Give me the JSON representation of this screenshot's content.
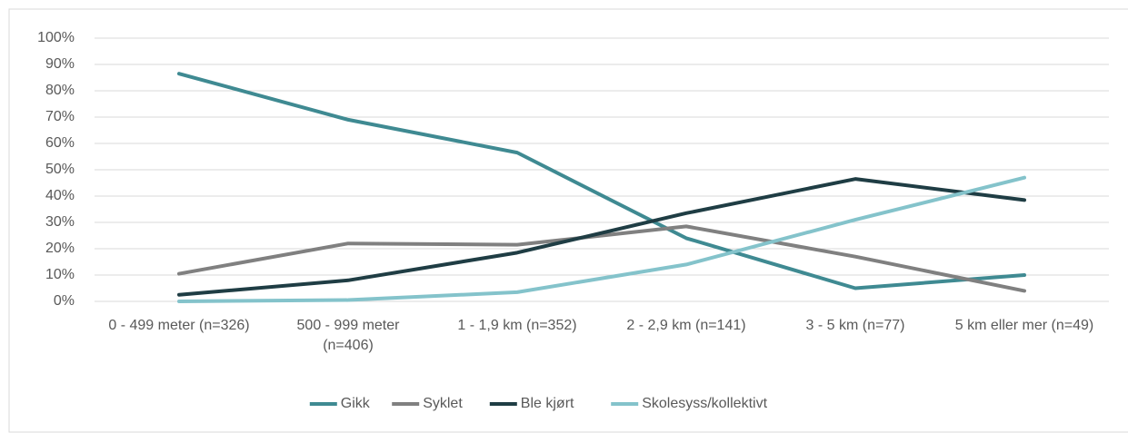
{
  "chart_data": {
    "type": "line",
    "categories": [
      "0 - 499 meter (n=326)",
      "500 - 999 meter (n=406)",
      "1 - 1,9 km (n=352)",
      "2 - 2,9 km (n=141)",
      "3 - 5 km (n=77)",
      "5 km eller mer (n=49)"
    ],
    "series": [
      {
        "name": "Gikk",
        "color": "#3f8a92",
        "values": [
          86.5,
          69,
          56.5,
          24,
          5,
          10
        ]
      },
      {
        "name": "Syklet",
        "color": "#808080",
        "values": [
          10.5,
          22,
          21.5,
          28.5,
          17,
          4
        ]
      },
      {
        "name": "Ble kjørt",
        "color": "#1f3d44",
        "values": [
          2.5,
          8,
          18.5,
          33.5,
          46.5,
          38.5
        ]
      },
      {
        "name": "Skolesyss/kollektivt",
        "color": "#84c3cb",
        "values": [
          0,
          0.5,
          3.5,
          14,
          31,
          47
        ]
      }
    ],
    "ylim": [
      0,
      100
    ],
    "yticks": [
      {
        "value": 0,
        "label": "0%"
      },
      {
        "value": 10,
        "label": "10%"
      },
      {
        "value": 20,
        "label": "20%"
      },
      {
        "value": 30,
        "label": "30%"
      },
      {
        "value": 40,
        "label": "40%"
      },
      {
        "value": 50,
        "label": "50%"
      },
      {
        "value": 60,
        "label": "60%"
      },
      {
        "value": 70,
        "label": "70%"
      },
      {
        "value": 80,
        "label": "80%"
      },
      {
        "value": 90,
        "label": "90%"
      },
      {
        "value": 100,
        "label": "100%"
      }
    ],
    "grid": true,
    "legend": "bottom"
  }
}
